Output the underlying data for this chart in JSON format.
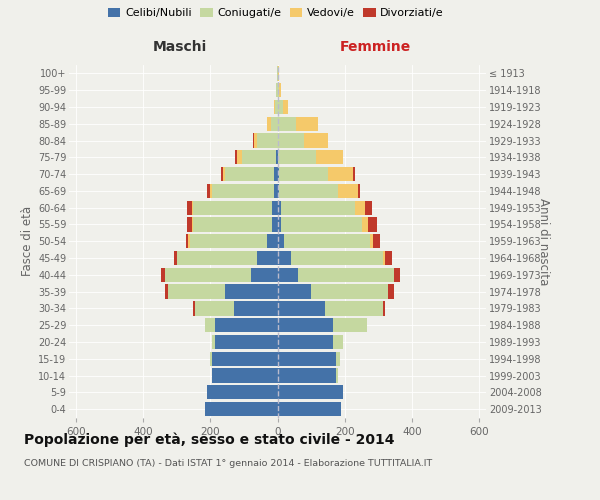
{
  "age_groups": [
    "0-4",
    "5-9",
    "10-14",
    "15-19",
    "20-24",
    "25-29",
    "30-34",
    "35-39",
    "40-44",
    "45-49",
    "50-54",
    "55-59",
    "60-64",
    "65-69",
    "70-74",
    "75-79",
    "80-84",
    "85-89",
    "90-94",
    "95-99",
    "100+"
  ],
  "birth_years": [
    "2009-2013",
    "2004-2008",
    "1999-2003",
    "1994-1998",
    "1989-1993",
    "1984-1988",
    "1979-1983",
    "1974-1978",
    "1969-1973",
    "1964-1968",
    "1959-1963",
    "1954-1958",
    "1949-1953",
    "1944-1948",
    "1939-1943",
    "1934-1938",
    "1929-1933",
    "1924-1928",
    "1919-1923",
    "1914-1918",
    "≤ 1913"
  ],
  "males": {
    "celibi": [
      215,
      210,
      195,
      195,
      185,
      185,
      130,
      155,
      80,
      60,
      30,
      15,
      15,
      10,
      10,
      5,
      0,
      0,
      0,
      0,
      0
    ],
    "coniugati": [
      0,
      0,
      0,
      5,
      10,
      30,
      115,
      170,
      255,
      240,
      230,
      235,
      235,
      185,
      145,
      100,
      60,
      20,
      8,
      3,
      2
    ],
    "vedovi": [
      0,
      0,
      0,
      0,
      0,
      0,
      0,
      0,
      0,
      0,
      5,
      5,
      5,
      5,
      8,
      15,
      10,
      10,
      3,
      0,
      0
    ],
    "divorziati": [
      0,
      0,
      0,
      0,
      0,
      0,
      5,
      10,
      10,
      8,
      8,
      15,
      15,
      10,
      5,
      5,
      2,
      0,
      0,
      0,
      0
    ]
  },
  "females": {
    "nubili": [
      190,
      195,
      175,
      175,
      165,
      165,
      140,
      100,
      60,
      40,
      20,
      10,
      10,
      5,
      5,
      0,
      0,
      0,
      0,
      0,
      0
    ],
    "coniugate": [
      0,
      0,
      5,
      10,
      30,
      100,
      175,
      230,
      285,
      275,
      255,
      240,
      220,
      175,
      145,
      115,
      80,
      55,
      15,
      5,
      2
    ],
    "vedove": [
      0,
      0,
      0,
      0,
      0,
      0,
      0,
      0,
      0,
      5,
      10,
      20,
      30,
      60,
      75,
      80,
      70,
      65,
      15,
      5,
      2
    ],
    "divorziate": [
      0,
      0,
      0,
      0,
      0,
      0,
      5,
      15,
      20,
      20,
      20,
      25,
      20,
      5,
      5,
      0,
      0,
      0,
      0,
      0,
      0
    ]
  },
  "colors": {
    "celibi_nubili": "#4472a8",
    "coniugati": "#c5d8a0",
    "vedovi": "#f5c96a",
    "divorziati": "#c0392b"
  },
  "xlim": 620,
  "xticks": [
    -600,
    -400,
    -200,
    0,
    200,
    400,
    600
  ],
  "title": "Popolazione per età, sesso e stato civile - 2014",
  "subtitle": "COMUNE DI CRISPIANO (TA) - Dati ISTAT 1° gennaio 2014 - Elaborazione TUTTITALIA.IT",
  "ylabel_left": "Fasce di età",
  "ylabel_right": "Anni di nascita",
  "xlabel_left": "Maschi",
  "xlabel_right": "Femmine",
  "bg_color": "#f0f0eb",
  "bar_height": 0.85,
  "legend_labels": [
    "Celibi/Nubili",
    "Coniugati/e",
    "Vedovi/e",
    "Divorziati/e"
  ]
}
